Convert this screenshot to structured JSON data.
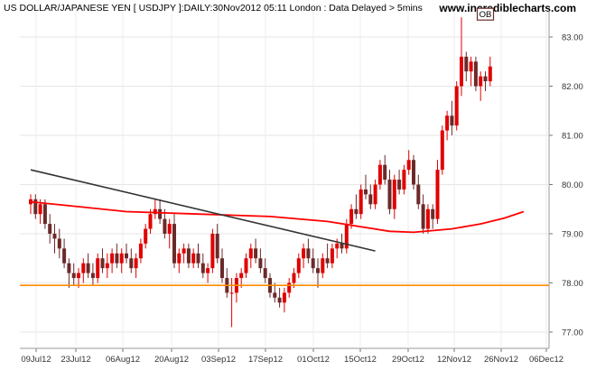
{
  "header": {
    "title": "US DOLLAR/JAPANESE YEN [ USDJPY ]:DAILY:30Nov2012 05:11 London : Data Delayed > 5mins",
    "brand": "www.incrediblecharts.com"
  },
  "chart_data": {
    "type": "candlestick",
    "title": "US DOLLAR/JAPANESE YEN [ USDJPY ]:DAILY:30Nov2012 05:11 London : Data Delayed > 5mins",
    "ylim": [
      76.8,
      83.6
    ],
    "y_ticks": [
      "77.00",
      "78.00",
      "79.00",
      "80.00",
      "81.00",
      "82.00",
      "83.00"
    ],
    "x_ticks": [
      "09Jul12",
      "23Jul12",
      "06Aug12",
      "20Aug12",
      "03Sep12",
      "17Sep12",
      "01Oct12",
      "15Oct12",
      "29Oct12",
      "12Nov12",
      "26Nov12",
      "06Dec12"
    ],
    "grid": true,
    "series": [
      {
        "type": "candlestick",
        "color_up": "#e00000",
        "color_down": "#6b2a2a",
        "ohlc": [
          [
            79.6,
            79.8,
            79.4,
            79.7
          ],
          [
            79.7,
            79.8,
            79.3,
            79.4
          ],
          [
            79.4,
            79.7,
            79.2,
            79.6
          ],
          [
            79.6,
            79.7,
            79.1,
            79.2
          ],
          [
            79.2,
            79.4,
            78.8,
            79.0
          ],
          [
            79.0,
            79.2,
            78.6,
            78.9
          ],
          [
            78.9,
            79.1,
            78.5,
            78.7
          ],
          [
            78.7,
            78.9,
            78.3,
            78.4
          ],
          [
            78.4,
            78.5,
            77.9,
            78.2
          ],
          [
            78.2,
            78.4,
            77.95,
            78.1
          ],
          [
            78.1,
            78.3,
            77.9,
            78.2
          ],
          [
            78.2,
            78.5,
            78.0,
            78.4
          ],
          [
            78.4,
            78.6,
            78.1,
            78.2
          ],
          [
            78.2,
            78.4,
            77.95,
            78.1
          ],
          [
            78.1,
            78.6,
            78.0,
            78.5
          ],
          [
            78.5,
            78.7,
            78.2,
            78.3
          ],
          [
            78.3,
            78.6,
            78.1,
            78.4
          ],
          [
            78.4,
            78.7,
            78.2,
            78.6
          ],
          [
            78.6,
            78.8,
            78.3,
            78.4
          ],
          [
            78.4,
            78.7,
            78.2,
            78.6
          ],
          [
            78.6,
            78.8,
            78.4,
            78.5
          ],
          [
            78.5,
            78.7,
            78.2,
            78.3
          ],
          [
            78.3,
            78.6,
            78.1,
            78.5
          ],
          [
            78.5,
            78.9,
            78.4,
            78.8
          ],
          [
            78.8,
            79.2,
            78.7,
            79.1
          ],
          [
            79.1,
            79.5,
            79.0,
            79.4
          ],
          [
            79.4,
            79.7,
            79.3,
            79.5
          ],
          [
            79.5,
            79.7,
            79.2,
            79.3
          ],
          [
            79.3,
            79.5,
            78.9,
            79.0
          ],
          [
            79.0,
            79.3,
            78.7,
            79.2
          ],
          [
            79.2,
            79.4,
            78.3,
            78.4
          ],
          [
            78.4,
            78.7,
            78.2,
            78.6
          ],
          [
            78.6,
            78.8,
            78.4,
            78.7
          ],
          [
            78.7,
            78.8,
            78.3,
            78.4
          ],
          [
            78.4,
            78.7,
            78.3,
            78.6
          ],
          [
            78.6,
            78.8,
            78.3,
            78.4
          ],
          [
            78.4,
            78.6,
            78.1,
            78.2
          ],
          [
            78.2,
            78.4,
            78.0,
            78.3
          ],
          [
            78.3,
            79.1,
            78.2,
            79.0
          ],
          [
            79.0,
            79.2,
            78.4,
            78.5
          ],
          [
            78.5,
            78.7,
            78.0,
            78.1
          ],
          [
            78.1,
            78.3,
            77.7,
            77.8
          ],
          [
            77.8,
            78.1,
            77.1,
            77.8
          ],
          [
            77.8,
            78.2,
            77.6,
            78.1
          ],
          [
            78.1,
            78.3,
            77.9,
            78.2
          ],
          [
            78.2,
            78.6,
            78.1,
            78.5
          ],
          [
            78.5,
            78.8,
            78.3,
            78.7
          ],
          [
            78.7,
            78.9,
            78.4,
            78.5
          ],
          [
            78.5,
            78.7,
            78.2,
            78.3
          ],
          [
            78.3,
            78.5,
            78.0,
            78.1
          ],
          [
            78.1,
            78.2,
            77.7,
            77.8
          ],
          [
            77.8,
            78.0,
            77.6,
            77.7
          ],
          [
            77.7,
            77.9,
            77.5,
            77.6
          ],
          [
            77.6,
            77.9,
            77.4,
            77.8
          ],
          [
            77.8,
            78.1,
            77.7,
            78.0
          ],
          [
            78.0,
            78.3,
            77.9,
            78.2
          ],
          [
            78.2,
            78.6,
            78.1,
            78.5
          ],
          [
            78.5,
            78.8,
            78.3,
            78.7
          ],
          [
            78.7,
            78.9,
            78.4,
            78.5
          ],
          [
            78.5,
            78.7,
            78.2,
            78.3
          ],
          [
            78.3,
            78.5,
            77.9,
            78.2
          ],
          [
            78.2,
            78.6,
            78.1,
            78.5
          ],
          [
            78.5,
            78.8,
            78.3,
            78.4
          ],
          [
            78.4,
            78.8,
            78.3,
            78.7
          ],
          [
            78.7,
            78.9,
            78.5,
            78.8
          ],
          [
            78.8,
            79.0,
            78.6,
            78.7
          ],
          [
            78.7,
            79.3,
            78.6,
            79.2
          ],
          [
            79.2,
            79.6,
            79.1,
            79.5
          ],
          [
            79.5,
            79.8,
            79.3,
            79.4
          ],
          [
            79.4,
            80.0,
            79.3,
            79.9
          ],
          [
            79.9,
            80.2,
            79.7,
            79.8
          ],
          [
            79.8,
            80.0,
            79.5,
            79.6
          ],
          [
            79.6,
            80.1,
            79.5,
            80.0
          ],
          [
            80.0,
            80.5,
            79.9,
            80.4
          ],
          [
            80.4,
            80.6,
            80.0,
            80.1
          ],
          [
            80.1,
            80.3,
            79.4,
            79.5
          ],
          [
            79.5,
            80.2,
            79.3,
            80.1
          ],
          [
            80.1,
            80.3,
            79.8,
            79.9
          ],
          [
            79.9,
            80.4,
            79.8,
            80.3
          ],
          [
            80.3,
            80.7,
            80.2,
            80.5
          ],
          [
            80.5,
            80.6,
            79.9,
            80.0
          ],
          [
            80.0,
            80.2,
            79.5,
            79.6
          ],
          [
            79.6,
            79.8,
            79.0,
            79.1
          ],
          [
            79.1,
            79.6,
            79.0,
            79.5
          ],
          [
            79.5,
            79.6,
            79.1,
            79.3
          ],
          [
            79.3,
            80.5,
            79.2,
            80.3
          ],
          [
            80.3,
            81.2,
            80.2,
            81.1
          ],
          [
            81.1,
            81.5,
            80.9,
            81.4
          ],
          [
            81.4,
            81.7,
            81.0,
            81.2
          ],
          [
            81.2,
            82.1,
            81.1,
            82.0
          ],
          [
            82.0,
            83.4,
            81.8,
            82.6
          ],
          [
            82.6,
            82.7,
            82.1,
            82.3
          ],
          [
            82.3,
            82.6,
            82.0,
            82.5
          ],
          [
            82.5,
            82.6,
            81.9,
            82.0
          ],
          [
            82.0,
            82.3,
            81.7,
            82.2
          ],
          [
            82.2,
            82.3,
            81.9,
            82.1
          ],
          [
            82.1,
            82.6,
            82.0,
            82.4
          ]
        ]
      },
      {
        "type": "line",
        "color": "#ff0000",
        "points": [
          [
            0,
            79.65
          ],
          [
            10,
            79.55
          ],
          [
            20,
            79.45
          ],
          [
            35,
            79.4
          ],
          [
            50,
            79.35
          ],
          [
            62,
            79.25
          ],
          [
            75,
            79.05
          ],
          [
            80,
            79.03
          ],
          [
            88,
            79.1
          ],
          [
            94,
            79.2
          ],
          [
            99,
            79.32
          ],
          [
            103,
            79.45
          ]
        ]
      },
      {
        "type": "line",
        "color": "#333333",
        "points": [
          [
            0,
            80.3
          ],
          [
            72,
            78.65
          ]
        ]
      },
      {
        "type": "hline",
        "color": "#ff8c00",
        "value": 77.95
      }
    ],
    "annotations": [
      {
        "text": "OB",
        "x": 95,
        "y": 83.4
      }
    ]
  }
}
